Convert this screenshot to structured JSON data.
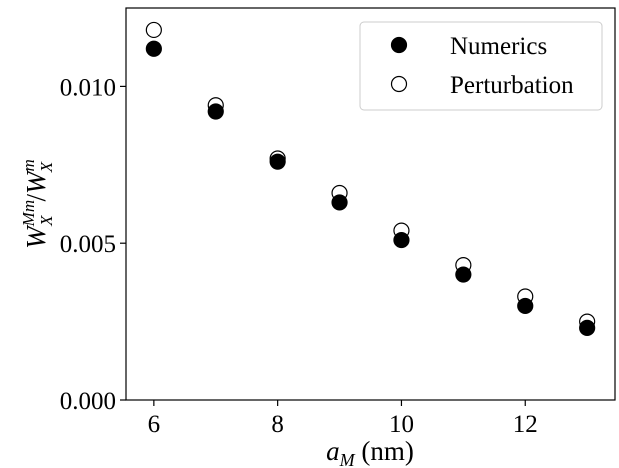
{
  "chart_data": {
    "type": "scatter",
    "x": [
      6,
      7,
      8,
      9,
      10,
      11,
      12,
      13
    ],
    "series": [
      {
        "name": "Numerics",
        "marker": "filled-circle",
        "color": "#000000",
        "values": [
          0.0112,
          0.0092,
          0.0076,
          0.0063,
          0.0051,
          0.004,
          0.003,
          0.0023
        ]
      },
      {
        "name": "Perturbation",
        "marker": "open-circle",
        "color": "#000000",
        "values": [
          0.0118,
          0.0094,
          0.0077,
          0.0066,
          0.0054,
          0.0043,
          0.0033,
          0.0025
        ]
      }
    ],
    "xlabel": {
      "symbol": "a",
      "subscript": "M",
      "unit": "(nm)"
    },
    "ylabel": {
      "num_symbol": "W",
      "num_sub": "X",
      "num_sup": "Mm",
      "slash": "/",
      "den_symbol": "W",
      "den_sub": "X",
      "den_sup": "m"
    },
    "xticks": [
      "6",
      "8",
      "10",
      "12"
    ],
    "xtick_values": [
      6,
      8,
      10,
      12
    ],
    "yticks": [
      "0.000",
      "0.005",
      "0.010"
    ],
    "ytick_values": [
      0.0,
      0.005,
      0.01
    ],
    "xlim": [
      5.55,
      13.45
    ],
    "ylim": [
      0.0,
      0.0125
    ],
    "grid": false,
    "legend_position": "top-right"
  }
}
